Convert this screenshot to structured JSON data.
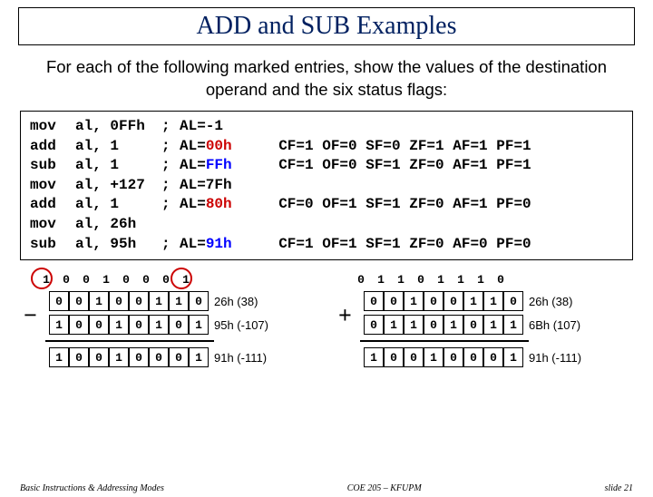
{
  "title": "ADD and SUB Examples",
  "intro": "For each of the following marked entries, show the values of the destination operand and the six status flags:",
  "code": [
    {
      "op": "mov",
      "arg": "al, 0FFh",
      "sep": "; ",
      "res": "AL=-1",
      "flags": "",
      "hi": ""
    },
    {
      "op": "add",
      "arg": "al, 1",
      "sep": "; ",
      "res": "AL=",
      "hi": "00h",
      "hicolor": "red",
      "flags": "  CF=1 OF=0 SF=0 ZF=1 AF=1 PF=1"
    },
    {
      "op": "sub",
      "arg": "al, 1",
      "sep": "; ",
      "res": "AL=",
      "hi": "FFh",
      "hicolor": "blue",
      "flags": "  CF=1 OF=0 SF=1 ZF=0 AF=1 PF=1"
    },
    {
      "op": "mov",
      "arg": "al, +127",
      "sep": "; ",
      "res": "AL=7Fh",
      "flags": "",
      "hi": ""
    },
    {
      "op": "add",
      "arg": "al, 1",
      "sep": "; ",
      "res": "AL=",
      "hi": "80h",
      "hicolor": "red",
      "flags": "  CF=0 OF=1 SF=1 ZF=0 AF=1 PF=0"
    },
    {
      "op": "mov",
      "arg": "al, 26h",
      "sep": "",
      "res": "",
      "flags": "",
      "hi": ""
    },
    {
      "op": "sub",
      "arg": "al, 95h",
      "sep": "; ",
      "res": "AL=",
      "hi": "91h",
      "hicolor": "blue",
      "flags": "  CF=1 OF=1 SF=1 ZF=0 AF=0 PF=0"
    }
  ],
  "left": {
    "carry": [
      "1",
      "0",
      "0",
      "1",
      "0",
      "0",
      "0",
      "1"
    ],
    "a": [
      "0",
      "0",
      "1",
      "0",
      "0",
      "1",
      "1",
      "0"
    ],
    "b": [
      "1",
      "0",
      "0",
      "1",
      "0",
      "1",
      "0",
      "1"
    ],
    "r": [
      "1",
      "0",
      "0",
      "1",
      "0",
      "0",
      "0",
      "1"
    ],
    "la": "26h (38)",
    "lb": "95h (-107)",
    "lr": "91h (-111)",
    "op": "−"
  },
  "right": {
    "carry": [
      "0",
      "1",
      "1",
      "0",
      "1",
      "1",
      "1",
      "0"
    ],
    "a": [
      "0",
      "0",
      "1",
      "0",
      "0",
      "1",
      "1",
      "0"
    ],
    "b": [
      "0",
      "1",
      "1",
      "0",
      "1",
      "0",
      "1",
      "1"
    ],
    "r": [
      "1",
      "0",
      "0",
      "1",
      "0",
      "0",
      "0",
      "1"
    ],
    "la": "26h (38)",
    "lb": "6Bh (107)",
    "lr": "91h (-111)",
    "op": "+"
  },
  "footer": {
    "left": "Basic Instructions & Addressing Modes",
    "center": "COE 205 – KFUPM",
    "right": "slide 21"
  }
}
